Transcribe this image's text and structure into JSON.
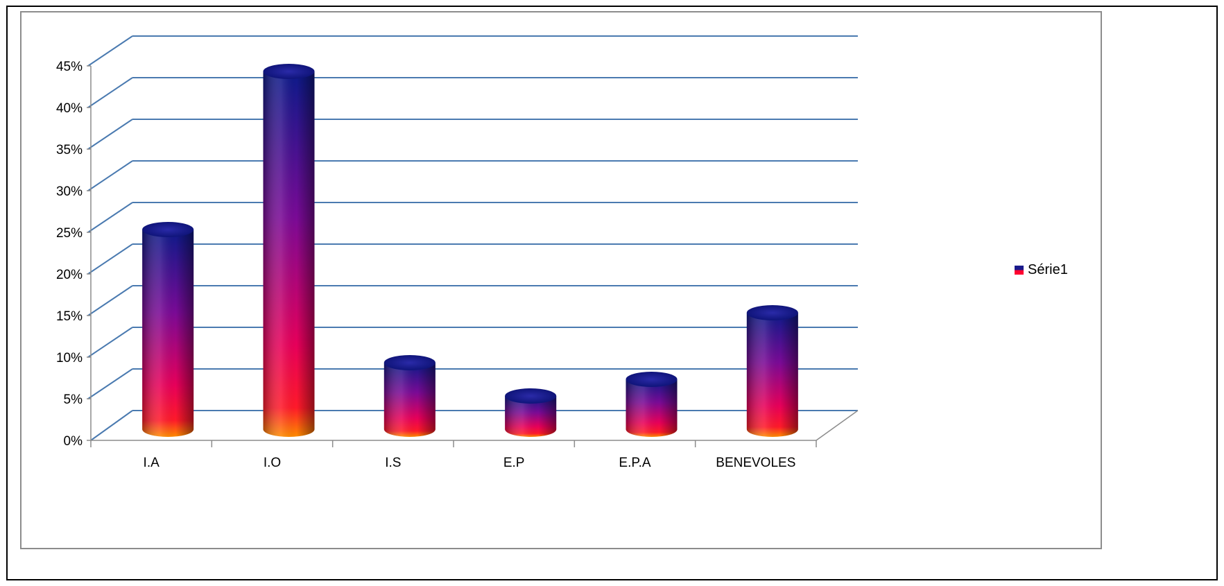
{
  "chart_data": {
    "type": "bar",
    "categories": [
      "I.A",
      "I.O",
      "I.S",
      "E.P",
      "E.P.A",
      "BENEVOLES"
    ],
    "series": [
      {
        "name": "Série1",
        "values": [
          24,
          43,
          8,
          4,
          6,
          14
        ]
      }
    ],
    "yticks": [
      "0%",
      "5%",
      "10%",
      "15%",
      "20%",
      "25%",
      "30%",
      "35%",
      "40%",
      "45%"
    ],
    "ylim": [
      0,
      45
    ],
    "y_unit": "%",
    "grid": true,
    "legend_position": "right",
    "three_d": true,
    "bar_shape": "cylinder",
    "colors": {
      "top": "#1a1a8c",
      "middle": "#8c0a8c",
      "lower": "#ff0030",
      "base": "#ff9900",
      "gridline": "#4a7ab0"
    }
  }
}
